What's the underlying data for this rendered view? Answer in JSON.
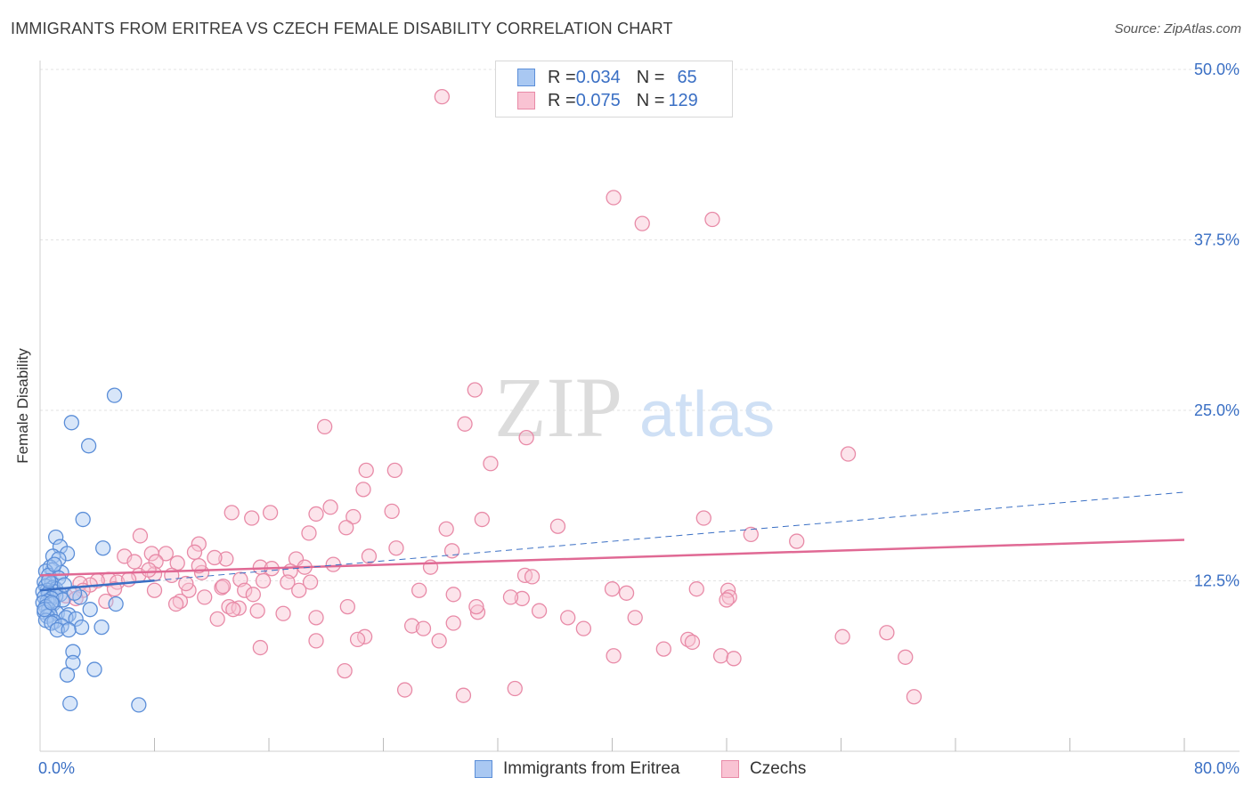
{
  "header": {
    "title": "IMMIGRANTS FROM ERITREA VS CZECH FEMALE DISABILITY CORRELATION CHART",
    "source": "Source: ZipAtlas.com"
  },
  "watermark": {
    "zip": "ZIP",
    "atlas": "atlas"
  },
  "legend_top": {
    "rows": [
      {
        "r_label": "R = ",
        "r_value": "0.034",
        "n_label": "N = ",
        "n_value": "65",
        "color": "#a9c8f2",
        "border": "#5b8ed8"
      },
      {
        "r_label": "R = ",
        "r_value": "0.075",
        "n_label": "N = ",
        "n_value": "129",
        "color": "#f9c3d3",
        "border": "#e88aa7"
      }
    ]
  },
  "legend_bottom": {
    "items": [
      {
        "label": "Immigrants from Eritrea",
        "color": "#a9c8f2",
        "border": "#5b8ed8"
      },
      {
        "label": "Czechs",
        "color": "#f9c3d3",
        "border": "#e88aa7"
      }
    ]
  },
  "chart_data": {
    "type": "scatter",
    "title": "IMMIGRANTS FROM ERITREA VS CZECH FEMALE DISABILITY CORRELATION CHART",
    "xlabel": "",
    "ylabel": "Female Disability",
    "xlim": [
      0,
      80
    ],
    "ylim": [
      0,
      50
    ],
    "x_tick_labels": [
      "0.0%",
      "80.0%"
    ],
    "y_ticks": [
      12.5,
      25.0,
      37.5,
      50.0
    ],
    "y_tick_labels": [
      "12.5%",
      "25.0%",
      "37.5%",
      "50.0%"
    ],
    "grid": true,
    "legend_position": "top-center",
    "colors": {
      "eritrea": "#5b8ed8",
      "czechs": "#e88aa7",
      "eritrea_line": "#3a6fc4",
      "czechs_line": "#e06994",
      "axis_label": "#3a6fc4"
    },
    "series": [
      {
        "name": "Immigrants from Eritrea",
        "trend": {
          "x": [
            0,
            80
          ],
          "y": [
            11.8,
            19.0
          ],
          "solid_until": 8
        },
        "points": [
          [
            5.2,
            26.1
          ],
          [
            2.2,
            24.1
          ],
          [
            3.4,
            22.4
          ],
          [
            3.0,
            17.0
          ],
          [
            1.1,
            15.7
          ],
          [
            1.4,
            15.0
          ],
          [
            4.4,
            14.9
          ],
          [
            1.9,
            14.5
          ],
          [
            0.9,
            14.3
          ],
          [
            1.3,
            14.1
          ],
          [
            0.7,
            13.5
          ],
          [
            0.9,
            13.3
          ],
          [
            1.5,
            13.1
          ],
          [
            0.4,
            13.2
          ],
          [
            0.6,
            12.9
          ],
          [
            1.3,
            12.7
          ],
          [
            0.3,
            12.4
          ],
          [
            0.8,
            12.3
          ],
          [
            0.4,
            12.1
          ],
          [
            0.9,
            12.0
          ],
          [
            1.1,
            11.9
          ],
          [
            0.5,
            11.8
          ],
          [
            0.2,
            11.7
          ],
          [
            1.0,
            11.7
          ],
          [
            0.6,
            11.6
          ],
          [
            1.4,
            11.5
          ],
          [
            1.1,
            11.4
          ],
          [
            0.3,
            11.3
          ],
          [
            0.8,
            11.2
          ],
          [
            1.6,
            11.1
          ],
          [
            2.8,
            11.3
          ],
          [
            0.5,
            11.0
          ],
          [
            0.2,
            10.9
          ],
          [
            0.9,
            10.8
          ],
          [
            0.4,
            10.6
          ],
          [
            5.3,
            10.8
          ],
          [
            3.5,
            10.4
          ],
          [
            0.6,
            10.4
          ],
          [
            0.3,
            10.2
          ],
          [
            1.2,
            10.1
          ],
          [
            0.7,
            10.0
          ],
          [
            2.0,
            10.0
          ],
          [
            0.5,
            9.9
          ],
          [
            1.8,
            9.8
          ],
          [
            2.5,
            9.7
          ],
          [
            0.4,
            9.6
          ],
          [
            1.0,
            9.5
          ],
          [
            0.8,
            9.4
          ],
          [
            1.5,
            9.2
          ],
          [
            2.9,
            9.1
          ],
          [
            4.3,
            9.1
          ],
          [
            1.2,
            8.9
          ],
          [
            2.0,
            8.9
          ],
          [
            2.3,
            7.3
          ],
          [
            2.3,
            6.5
          ],
          [
            3.8,
            6.0
          ],
          [
            1.9,
            5.6
          ],
          [
            2.1,
            3.5
          ],
          [
            6.9,
            3.4
          ],
          [
            0.6,
            12.5
          ],
          [
            1.0,
            13.7
          ],
          [
            0.3,
            10.4
          ],
          [
            1.7,
            12.2
          ],
          [
            2.4,
            11.6
          ],
          [
            0.8,
            10.9
          ]
        ]
      },
      {
        "name": "Czechs",
        "trend": {
          "x": [
            0,
            80
          ],
          "y": [
            12.9,
            15.5
          ]
        },
        "points": [
          [
            28.1,
            48.0
          ],
          [
            40.1,
            40.6
          ],
          [
            42.1,
            38.7
          ],
          [
            47.0,
            39.0
          ],
          [
            30.4,
            26.5
          ],
          [
            29.7,
            24.0
          ],
          [
            34.0,
            23.0
          ],
          [
            19.9,
            23.8
          ],
          [
            56.5,
            21.8
          ],
          [
            31.5,
            21.1
          ],
          [
            22.8,
            20.6
          ],
          [
            24.8,
            20.6
          ],
          [
            22.6,
            19.2
          ],
          [
            13.4,
            17.5
          ],
          [
            14.8,
            17.1
          ],
          [
            16.1,
            17.5
          ],
          [
            19.3,
            17.4
          ],
          [
            20.3,
            17.9
          ],
          [
            21.9,
            17.2
          ],
          [
            24.6,
            17.6
          ],
          [
            30.9,
            17.0
          ],
          [
            46.4,
            17.1
          ],
          [
            21.4,
            16.4
          ],
          [
            28.4,
            16.3
          ],
          [
            36.2,
            16.5
          ],
          [
            7.0,
            15.8
          ],
          [
            11.1,
            15.2
          ],
          [
            18.8,
            16.0
          ],
          [
            24.9,
            14.9
          ],
          [
            49.7,
            15.9
          ],
          [
            52.9,
            15.4
          ],
          [
            28.8,
            14.7
          ],
          [
            5.9,
            14.3
          ],
          [
            7.8,
            14.5
          ],
          [
            8.8,
            14.5
          ],
          [
            10.8,
            14.6
          ],
          [
            13.0,
            14.1
          ],
          [
            17.9,
            14.1
          ],
          [
            23.0,
            14.3
          ],
          [
            6.6,
            13.9
          ],
          [
            8.1,
            13.9
          ],
          [
            9.6,
            13.8
          ],
          [
            12.2,
            14.2
          ],
          [
            15.4,
            13.5
          ],
          [
            18.5,
            13.5
          ],
          [
            11.3,
            13.1
          ],
          [
            17.5,
            13.2
          ],
          [
            9.2,
            12.9
          ],
          [
            8.0,
            13.0
          ],
          [
            6.9,
            12.9
          ],
          [
            4.8,
            12.6
          ],
          [
            4.0,
            12.5
          ],
          [
            5.4,
            12.4
          ],
          [
            3.5,
            12.2
          ],
          [
            2.8,
            12.3
          ],
          [
            14.0,
            12.6
          ],
          [
            15.6,
            12.5
          ],
          [
            17.3,
            12.4
          ],
          [
            18.9,
            12.4
          ],
          [
            33.9,
            12.9
          ],
          [
            34.4,
            12.8
          ],
          [
            3.0,
            11.8
          ],
          [
            5.2,
            11.9
          ],
          [
            8.0,
            11.8
          ],
          [
            10.4,
            11.8
          ],
          [
            12.7,
            12.0
          ],
          [
            14.3,
            11.8
          ],
          [
            18.1,
            11.8
          ],
          [
            26.5,
            11.8
          ],
          [
            40.0,
            11.9
          ],
          [
            41.0,
            11.6
          ],
          [
            45.9,
            11.9
          ],
          [
            48.1,
            11.8
          ],
          [
            48.2,
            11.3
          ],
          [
            48.0,
            11.1
          ],
          [
            33.7,
            11.2
          ],
          [
            1.8,
            11.4
          ],
          [
            2.5,
            11.2
          ],
          [
            4.6,
            11.0
          ],
          [
            9.8,
            11.0
          ],
          [
            11.5,
            11.3
          ],
          [
            13.2,
            10.6
          ],
          [
            13.9,
            10.5
          ],
          [
            21.5,
            10.6
          ],
          [
            12.4,
            9.7
          ],
          [
            13.5,
            10.4
          ],
          [
            15.2,
            10.3
          ],
          [
            17.0,
            10.1
          ],
          [
            19.3,
            9.8
          ],
          [
            28.9,
            9.4
          ],
          [
            30.6,
            10.2
          ],
          [
            36.9,
            9.8
          ],
          [
            34.9,
            10.3
          ],
          [
            41.6,
            9.8
          ],
          [
            26.0,
            9.2
          ],
          [
            26.8,
            9.0
          ],
          [
            38.0,
            9.0
          ],
          [
            22.7,
            8.4
          ],
          [
            27.9,
            8.1
          ],
          [
            56.1,
            8.4
          ],
          [
            59.2,
            8.7
          ],
          [
            32.9,
            11.3
          ],
          [
            45.3,
            8.2
          ],
          [
            45.6,
            8.0
          ],
          [
            19.3,
            8.1
          ],
          [
            22.2,
            8.2
          ],
          [
            15.4,
            7.6
          ],
          [
            43.6,
            7.5
          ],
          [
            40.1,
            7.0
          ],
          [
            47.6,
            7.0
          ],
          [
            48.5,
            6.8
          ],
          [
            60.5,
            6.9
          ],
          [
            21.3,
            5.9
          ],
          [
            25.5,
            4.5
          ],
          [
            33.2,
            4.6
          ],
          [
            29.6,
            4.1
          ],
          [
            61.1,
            4.0
          ],
          [
            30.5,
            10.6
          ],
          [
            28.9,
            11.5
          ],
          [
            9.5,
            10.8
          ],
          [
            20.5,
            13.7
          ],
          [
            12.8,
            12.1
          ],
          [
            7.6,
            13.3
          ],
          [
            16.2,
            13.4
          ],
          [
            6.2,
            12.6
          ],
          [
            11.1,
            13.6
          ],
          [
            27.3,
            13.5
          ],
          [
            14.9,
            11.5
          ],
          [
            10.2,
            12.3
          ]
        ]
      }
    ]
  }
}
